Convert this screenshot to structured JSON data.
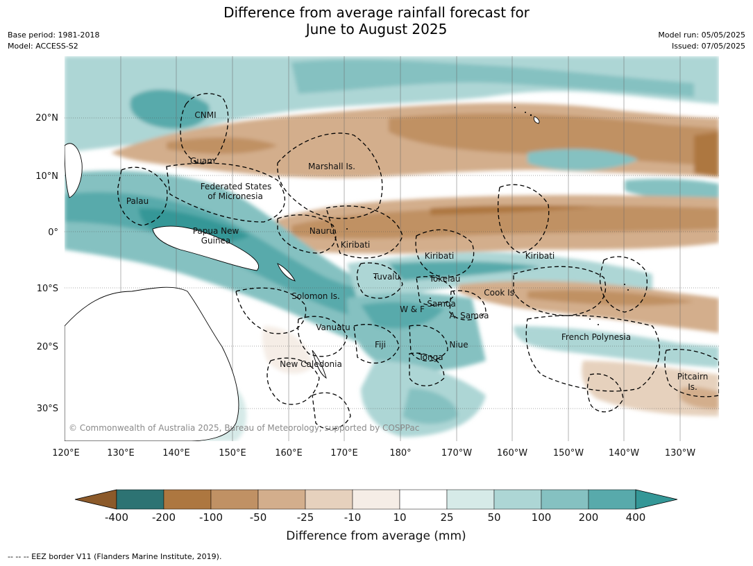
{
  "header": {
    "title_line1": "Difference from average rainfall forecast for",
    "title_line2": "June to August 2025",
    "base_period": "Base period: 1981-2018",
    "model": "Model: ACCESS-S2",
    "model_run": "Model run: 05/05/2025",
    "issued": "Issued: 07/05/2025"
  },
  "axes": {
    "lon_ticks": [
      "120°E",
      "130°E",
      "140°E",
      "150°E",
      "160°E",
      "170°E",
      "180°",
      "170°W",
      "160°W",
      "150°W",
      "140°W",
      "130°W"
    ],
    "lat_ticks": [
      "20°N",
      "10°N",
      "0°",
      "10°S",
      "20°S",
      "30°S"
    ]
  },
  "places": [
    {
      "name": "CNMI"
    },
    {
      "name": "Guam"
    },
    {
      "name": "Marshall Is."
    },
    {
      "name": "Federated States"
    },
    {
      "name": "of Micronesia"
    },
    {
      "name": "Palau"
    },
    {
      "name": "Papua New"
    },
    {
      "name": "Guinea"
    },
    {
      "name": "Nauru"
    },
    {
      "name": "Kiribati"
    },
    {
      "name": "Kiribati"
    },
    {
      "name": "Kiribati"
    },
    {
      "name": "Tuvalu"
    },
    {
      "name": "Tokelau"
    },
    {
      "name": "Cook Is."
    },
    {
      "name": "Solomon Is."
    },
    {
      "name": "Samoa"
    },
    {
      "name": "W & F"
    },
    {
      "name": "A. Samoa"
    },
    {
      "name": "Vanuatu"
    },
    {
      "name": "Fiji"
    },
    {
      "name": "Niue"
    },
    {
      "name": "Tonga"
    },
    {
      "name": "New Caledonia"
    },
    {
      "name": "French Polynesia"
    },
    {
      "name": "Pitcairn"
    },
    {
      "name": "Is."
    }
  ],
  "copyright": "© Commonwealth of Australia 2025, Bureau of Meteorology, supported by COSPPac",
  "colorbar": {
    "title": "Difference from average (mm)",
    "ticks": [
      "-400",
      "-200",
      "-100",
      "-50",
      "-25",
      "-10",
      "10",
      "25",
      "50",
      "100",
      "200",
      "400"
    ],
    "colors": [
      "#8c5a2a",
      "#ad7740",
      "#c09164",
      "#d3ae8c",
      "#e6d1bd",
      "#f5ede6",
      "#ffffff",
      "#d6eae8",
      "#add6d5",
      "#85c1c1",
      "#58aaab",
      "#349797",
      "#2d7373"
    ]
  },
  "footer": "-- -- -- EEZ border V11 (Flanders Marine Institute, 2019)."
}
